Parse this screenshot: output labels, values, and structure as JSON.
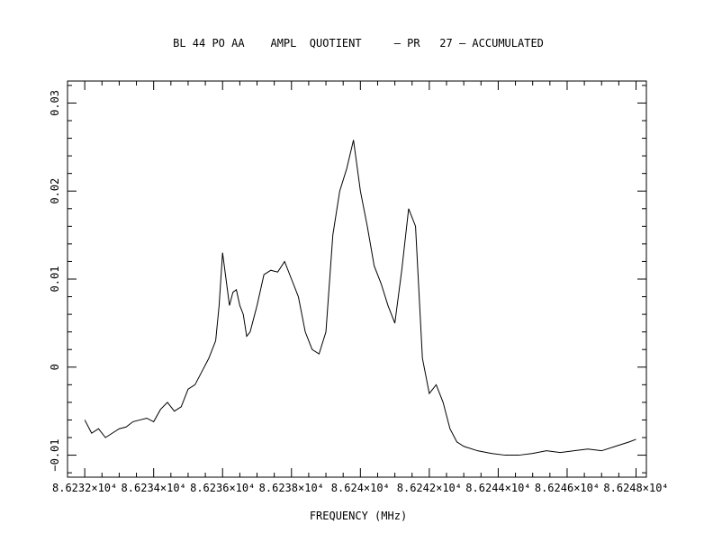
{
  "chart_data": {
    "type": "line",
    "title": "BL 44 PO AA    AMPL  QUOTIENT     – PR   27 – ACCUMULATED",
    "xlabel": "FREQUENCY (MHz)",
    "ylabel": "",
    "xlim": [
      86231.5,
      86248.3
    ],
    "ylim": [
      -0.0125,
      0.0325
    ],
    "grid": false,
    "x_ticks": [
      {
        "value": 86232,
        "label": "8.6232×10⁴"
      },
      {
        "value": 86234,
        "label": "8.6234×10⁴"
      },
      {
        "value": 86236,
        "label": "8.6236×10⁴"
      },
      {
        "value": 86238,
        "label": "8.6238×10⁴"
      },
      {
        "value": 86240,
        "label": "8.624×10⁴"
      },
      {
        "value": 86242,
        "label": "8.6242×10⁴"
      },
      {
        "value": 86244,
        "label": "8.6244×10⁴"
      },
      {
        "value": 86246,
        "label": "8.6246×10⁴"
      },
      {
        "value": 86248,
        "label": "8.6248×10⁴"
      }
    ],
    "y_ticks": [
      {
        "value": -0.01,
        "label": "−0.01"
      },
      {
        "value": 0,
        "label": "0"
      },
      {
        "value": 0.01,
        "label": "0.01"
      },
      {
        "value": 0.02,
        "label": "0.02"
      },
      {
        "value": 0.03,
        "label": "0.03"
      }
    ],
    "series": [
      {
        "x": [
          86232.0,
          86232.2,
          86232.4,
          86232.6,
          86232.8,
          86233.0,
          86233.2,
          86233.4,
          86233.6,
          86233.8,
          86234.0,
          86234.2,
          86234.4,
          86234.6,
          86234.8,
          86235.0,
          86235.2,
          86235.4,
          86235.6,
          86235.8,
          86235.9,
          86236.0,
          86236.1,
          86236.2,
          86236.3,
          86236.4,
          86236.5,
          86236.6,
          86236.7,
          86236.8,
          86237.0,
          86237.2,
          86237.4,
          86237.6,
          86237.8,
          86238.0,
          86238.2,
          86238.4,
          86238.6,
          86238.8,
          86239.0,
          86239.2,
          86239.4,
          86239.6,
          86239.8,
          86240.0,
          86240.2,
          86240.4,
          86240.6,
          86240.8,
          86241.0,
          86241.2,
          86241.4,
          86241.6,
          86241.8,
          86242.0,
          86242.2,
          86242.4,
          86242.6,
          86242.8,
          86243.0,
          86243.4,
          86243.8,
          86244.2,
          86244.6,
          86245.0,
          86245.4,
          86245.8,
          86246.2,
          86246.6,
          86247.0,
          86247.4,
          86247.8,
          86248.0
        ],
        "y": [
          -0.006,
          -0.0075,
          -0.007,
          -0.008,
          -0.0075,
          -0.007,
          -0.0068,
          -0.0062,
          -0.006,
          -0.0058,
          -0.0062,
          -0.0048,
          -0.004,
          -0.005,
          -0.0045,
          -0.0025,
          -0.002,
          -0.0005,
          0.001,
          0.003,
          0.007,
          0.013,
          0.01,
          0.007,
          0.0085,
          0.0088,
          0.007,
          0.006,
          0.0035,
          0.004,
          0.007,
          0.0105,
          0.011,
          0.0108,
          0.012,
          0.01,
          0.008,
          0.004,
          0.002,
          0.0015,
          0.004,
          0.015,
          0.02,
          0.0225,
          0.0258,
          0.02,
          0.016,
          0.0115,
          0.0095,
          0.007,
          0.005,
          0.011,
          0.018,
          0.016,
          0.001,
          -0.003,
          -0.002,
          -0.004,
          -0.007,
          -0.0085,
          -0.009,
          -0.0095,
          -0.0098,
          -0.01,
          -0.01,
          -0.0098,
          -0.0095,
          -0.0097,
          -0.0095,
          -0.0093,
          -0.0095,
          -0.009,
          -0.0085,
          -0.0082
        ]
      }
    ]
  }
}
